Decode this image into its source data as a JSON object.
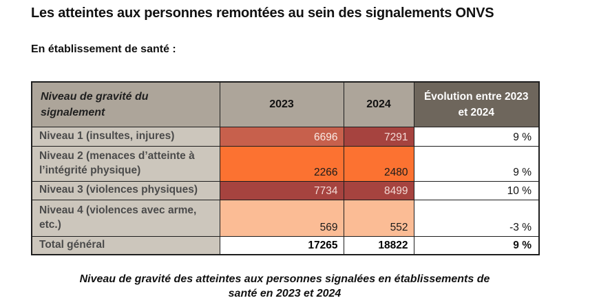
{
  "page": {
    "title": "Les atteintes aux personnes remontées au sein des signalements ONVS",
    "subtitle": "En établissement de santé :",
    "caption": "Niveau de gravité des atteintes aux personnes signalées en établissements de santé en 2023 et 2024"
  },
  "table": {
    "columns": {
      "severity": "Niveau de gravité du signalement",
      "y2023": "2023",
      "y2024": "2024",
      "evolution": "Évolution entre 2023 et 2024"
    },
    "colors": {
      "header_bg": "#ADA59A",
      "evolution_header_bg": "#6E665C",
      "evolution_header_fg": "#FFFFFF",
      "row_label_bg": "#CCC6BC",
      "row_label_fg": "#4A4A4A",
      "border": "#1D1D1D"
    },
    "rows": [
      {
        "label": "Niveau 1 (insultes, injures)",
        "y2023": {
          "value": "6696",
          "bg": "#C7604C",
          "fg": "#F9EAE5"
        },
        "y2024": {
          "value": "7291",
          "bg": "#A6433F",
          "fg": "#F3DAD6"
        },
        "evolution": "9 %"
      },
      {
        "label": "Niveau 2 (menaces d’atteinte à l’intégrité physique)",
        "y2023": {
          "value": "2266",
          "bg": "#FC7231",
          "fg": "#1A1A1A"
        },
        "y2024": {
          "value": "2480",
          "bg": "#FC7231",
          "fg": "#1A1A1A"
        },
        "evolution": "9 %"
      },
      {
        "label": "Niveau 3 (violences physiques)",
        "y2023": {
          "value": "7734",
          "bg": "#A6433F",
          "fg": "#F3DAD6"
        },
        "y2024": {
          "value": "8499",
          "bg": "#A6433F",
          "fg": "#F3DAD6"
        },
        "evolution": "10 %"
      },
      {
        "label": "Niveau 4 (violences avec arme, etc.)",
        "y2023": {
          "value": "569",
          "bg": "#FBBC95",
          "fg": "#1A1A1A"
        },
        "y2024": {
          "value": "552",
          "bg": "#FBBC95",
          "fg": "#1A1A1A"
        },
        "evolution": "-3 %"
      },
      {
        "label": "Total général",
        "y2023": {
          "value": "17265",
          "bg": "#FFFFFF",
          "fg": "#000000"
        },
        "y2024": {
          "value": "18822",
          "bg": "#FFFFFF",
          "fg": "#000000"
        },
        "evolution": "9 %"
      }
    ]
  }
}
